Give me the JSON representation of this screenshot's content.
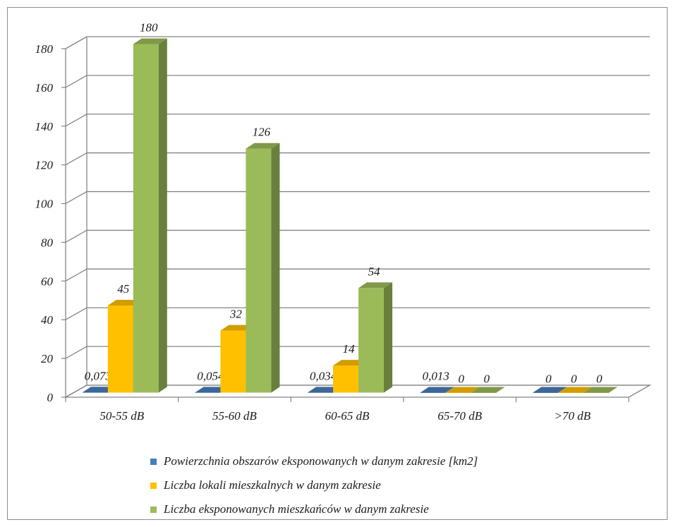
{
  "chart_data": {
    "type": "bar",
    "categories": [
      "50-55 dB",
      "55-60 dB",
      "60-65 dB",
      "65-70 dB",
      ">70 dB"
    ],
    "series": [
      {
        "name": "Powierzchnia obszarów eksponowanych w danym zakresie [km2]",
        "values": [
          0.073,
          0.054,
          0.034,
          0.013,
          0
        ],
        "labels": [
          "0,073",
          "0,054",
          "0,034",
          "0,013",
          "0"
        ],
        "color": "#4a7ebb"
      },
      {
        "name": "Liczba lokali mieszkalnych w danym zakresie",
        "values": [
          45,
          32,
          14,
          0,
          0
        ],
        "labels": [
          "45",
          "32",
          "14",
          "0",
          "0"
        ],
        "color": "#ffc000"
      },
      {
        "name": "Liczba eksponowanych mieszkańców w danym zakresie",
        "values": [
          180,
          126,
          54,
          0,
          0
        ],
        "labels": [
          "180",
          "126",
          "54",
          "0",
          "0"
        ],
        "color": "#9bbb59"
      }
    ],
    "y_ticks": [
      "0",
      "20",
      "40",
      "60",
      "80",
      "100",
      "120",
      "140",
      "160",
      "180"
    ],
    "ylim": [
      0,
      180
    ],
    "grid": true,
    "three_d": true,
    "legend_position": "bottom"
  }
}
